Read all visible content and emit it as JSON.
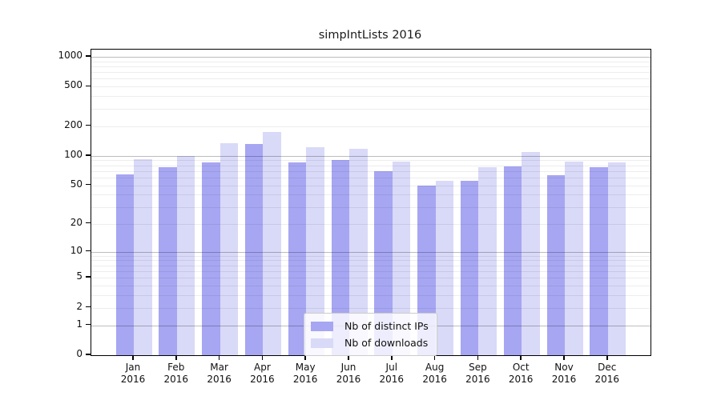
{
  "chart_data": {
    "type": "bar",
    "title": "simpIntLists 2016",
    "categories": [
      "Jan",
      "Feb",
      "Mar",
      "Apr",
      "May",
      "Jun",
      "Jul",
      "Aug",
      "Sep",
      "Oct",
      "Nov",
      "Dec"
    ],
    "year_label": "2016",
    "series": [
      {
        "name": "Nb of distinct IPs",
        "color": "#a6a6f2",
        "values": [
          65,
          77,
          85,
          133,
          85,
          90,
          70,
          50,
          56,
          78,
          64,
          77
        ]
      },
      {
        "name": "Nb of downloads",
        "color": "#d9d9f8",
        "values": [
          93,
          99,
          135,
          175,
          123,
          117,
          87,
          56,
          77,
          110,
          88,
          85
        ]
      }
    ],
    "yscale": "log1p",
    "ylim": [
      0,
      1180
    ],
    "y_ticks": [
      0,
      1,
      2,
      5,
      10,
      20,
      50,
      100,
      200,
      500,
      1000
    ],
    "grid": true,
    "grid_major_at": [
      1,
      10,
      100,
      1000
    ],
    "legend_position": "lower center",
    "axis_color": "#000000",
    "major_grid_color": "#bdbdbd",
    "minor_grid_color": "#ededed"
  }
}
